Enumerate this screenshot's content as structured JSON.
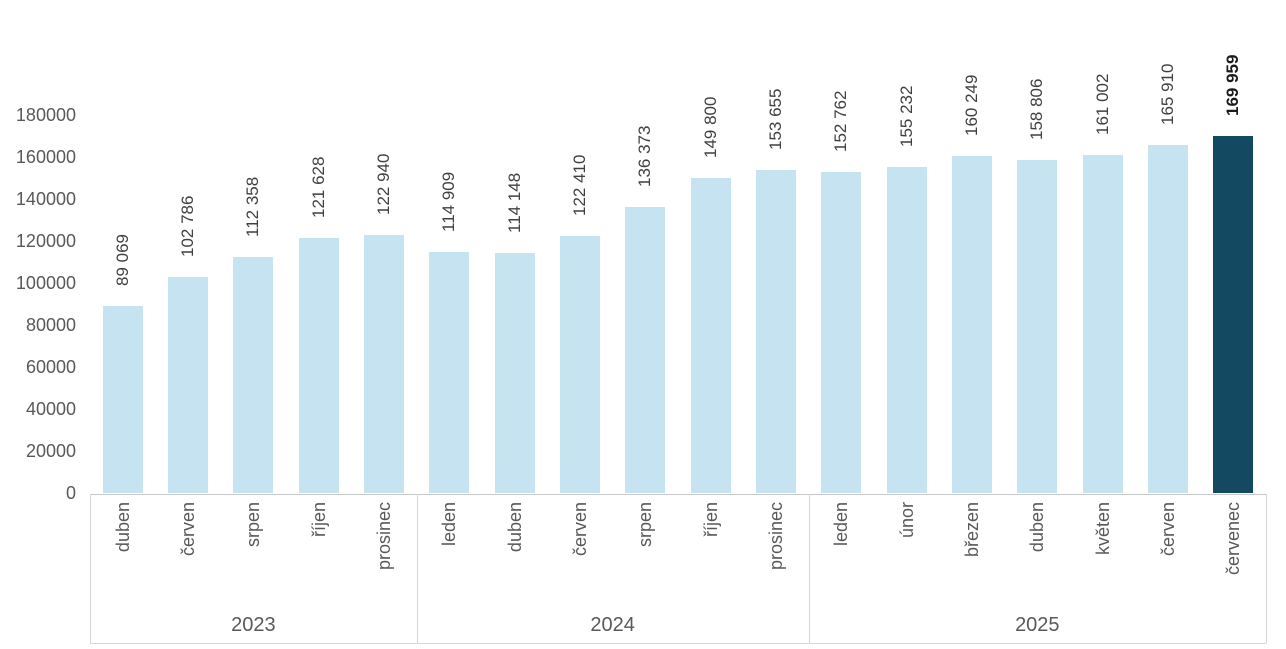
{
  "chart_data": {
    "type": "bar",
    "title": "",
    "xlabel": "",
    "ylabel": "",
    "ylim": [
      0,
      180000
    ],
    "grid": false,
    "legend": null,
    "y_tick_labels": [
      "0",
      "20000",
      "40000",
      "60000",
      "80000",
      "100000",
      "120000",
      "140000",
      "160000",
      "180000"
    ],
    "y_tick_values": [
      0,
      20000,
      40000,
      60000,
      80000,
      100000,
      120000,
      140000,
      160000,
      180000
    ],
    "groups": [
      {
        "year": "2023",
        "months": [
          "duben",
          "červen",
          "srpen",
          "říjen",
          "prosinec"
        ],
        "values": [
          89069,
          102786,
          112358,
          121628,
          122940
        ],
        "value_labels": [
          "89 069",
          "102 786",
          "112 358",
          "121 628",
          "122 940"
        ]
      },
      {
        "year": "2024",
        "months": [
          "leden",
          "duben",
          "červen",
          "srpen",
          "říjen",
          "prosinec"
        ],
        "values": [
          114909,
          114148,
          122410,
          136373,
          149800,
          153655
        ],
        "value_labels": [
          "114 909",
          "114 148",
          "122 410",
          "136 373",
          "149 800",
          "153 655"
        ]
      },
      {
        "year": "2025",
        "months": [
          "leden",
          "únor",
          "březen",
          "duben",
          "květen",
          "červen",
          "červenec"
        ],
        "values": [
          152762,
          155232,
          160249,
          158806,
          161002,
          165910,
          169959
        ],
        "value_labels": [
          "152 762",
          "155 232",
          "160 249",
          "158 806",
          "161 002",
          "165 910",
          "169 959"
        ]
      }
    ],
    "highlight": {
      "group_index": 2,
      "month_index": 6,
      "month": "červenec",
      "year": "2025",
      "value": 169959,
      "value_label": "169 959"
    },
    "colors": {
      "bar": "#c6e3f2",
      "highlight_bar": "#134a61",
      "axis_text": "#595959",
      "value_text": "#404040",
      "highlight_value_text": "#1a1a1a",
      "frame_line": "#d6d6d6"
    }
  }
}
